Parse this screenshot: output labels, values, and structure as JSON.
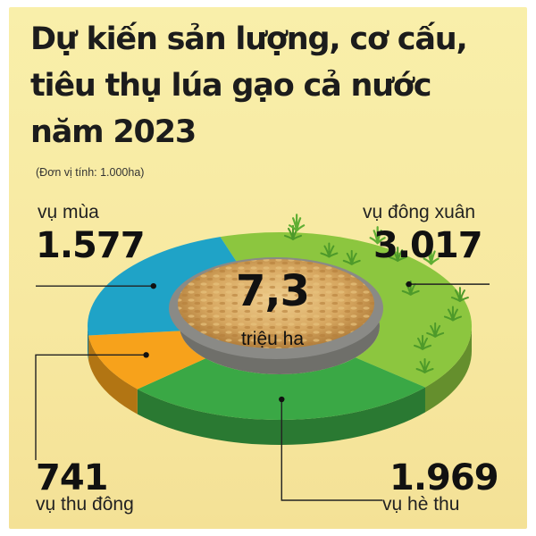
{
  "title_lines": [
    "Dự kiến sản lượng, cơ cấu,",
    "tiêu thụ lúa gạo cả nước",
    "năm 2023"
  ],
  "unit_note": "(Đơn vị tính: 1.000ha)",
  "center": {
    "value": "7,3",
    "unit": "triệu ha"
  },
  "colors": {
    "dong_xuan": "#8cc63f",
    "he_thu": "#3aa845",
    "thu_dong": "#f7a21b",
    "mua": "#1fa3c7",
    "rice": "#d3a15a"
  },
  "chart_data": {
    "type": "pie",
    "title": "Dự kiến sản lượng, cơ cấu, tiêu thụ lúa gạo cả nước năm 2023",
    "unit": "1.000ha",
    "total_label": "7,3 triệu ha",
    "slices": [
      {
        "label": "vụ đông xuân",
        "value": 3017,
        "display": "3.017"
      },
      {
        "label": "vụ hè thu",
        "value": 1969,
        "display": "1.969"
      },
      {
        "label": "vụ thu đông",
        "value": 741,
        "display": "741"
      },
      {
        "label": "vụ mùa",
        "value": 1577,
        "display": "1.577"
      }
    ]
  }
}
